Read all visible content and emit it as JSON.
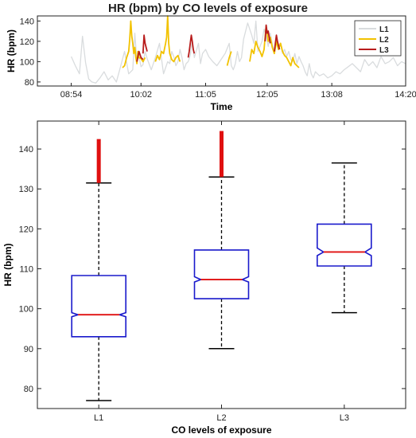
{
  "top_title": "HR (bpm) by CO levels of exposure",
  "chart_data": [
    {
      "type": "line",
      "title": "HR (bpm) by CO levels of exposure",
      "xlabel": "Time",
      "ylabel": "HR (bpm)",
      "x_ticks": [
        "08:54",
        "10:02",
        "11:05",
        "12:05",
        "13:08",
        "14:20"
      ],
      "y_ticks": [
        80,
        90,
        100,
        110,
        120,
        130,
        140
      ],
      "ylim": [
        76,
        145
      ],
      "legend_position": "top-right",
      "legend": [
        {
          "name": "L1",
          "color": "#d9dcde"
        },
        {
          "name": "L2",
          "color": "#f2c200"
        },
        {
          "name": "L3",
          "color": "#b81c1c"
        }
      ],
      "series": [
        {
          "name": "L1",
          "color": "#d9dcde",
          "x": [
            "08:54",
            "08:58",
            "09:02",
            "09:05",
            "09:08",
            "09:11",
            "09:14",
            "09:18",
            "09:22",
            "09:26",
            "09:30",
            "09:34",
            "09:38",
            "09:42",
            "09:46",
            "09:50",
            "09:54",
            "09:56",
            "09:58",
            "10:00",
            "10:02",
            "10:04",
            "10:06",
            "10:08",
            "10:12",
            "10:16",
            "10:20",
            "10:24",
            "10:26",
            "10:28",
            "10:30",
            "10:32",
            "10:34",
            "10:36",
            "10:38",
            "10:40",
            "10:42",
            "10:44",
            "10:46",
            "10:48",
            "10:50",
            "10:52",
            "10:54",
            "10:58",
            "11:00",
            "11:02",
            "11:05",
            "11:08",
            "11:12",
            "11:16",
            "11:20",
            "11:24",
            "11:28",
            "11:30",
            "11:32",
            "11:34",
            "11:36",
            "11:38",
            "11:40",
            "11:42",
            "11:46",
            "11:50",
            "11:52",
            "11:54",
            "11:56",
            "11:58",
            "12:00",
            "12:02",
            "12:04",
            "12:06",
            "12:08",
            "12:10",
            "12:12",
            "12:14",
            "12:16",
            "12:18",
            "12:20",
            "12:22",
            "12:24",
            "12:26",
            "12:28",
            "12:30",
            "12:32",
            "12:34",
            "12:36",
            "12:38",
            "12:40",
            "12:42",
            "12:44",
            "12:46",
            "12:48",
            "12:50",
            "12:52",
            "12:56",
            "13:00",
            "13:04",
            "13:08",
            "13:12",
            "13:16",
            "13:20",
            "13:24",
            "13:28",
            "13:32",
            "13:36",
            "13:40",
            "13:44",
            "13:48",
            "13:52",
            "13:56",
            "14:00",
            "14:04",
            "14:08",
            "14:12",
            "14:16",
            "14:20"
          ],
          "values": [
            105,
            96,
            88,
            125,
            99,
            83,
            80,
            79,
            84,
            90,
            82,
            86,
            80,
            95,
            110,
            88,
            92,
            128,
            100,
            105,
            95,
            97,
            110,
            103,
            92,
            104,
            118,
            88,
            94,
            100,
            98,
            110,
            105,
            96,
            100,
            112,
            104,
            92,
            98,
            100,
            106,
            120,
            104,
            118,
            98,
            108,
            112,
            105,
            100,
            96,
            102,
            108,
            118,
            96,
            92,
            98,
            110,
            100,
            104,
            122,
            138,
            126,
            118,
            140,
            110,
            115,
            120,
            132,
            125,
            115,
            128,
            118,
            110,
            125,
            115,
            118,
            108,
            112,
            105,
            110,
            102,
            100,
            108,
            98,
            105,
            100,
            96,
            90,
            86,
            98,
            88,
            84,
            90,
            86,
            88,
            84,
            86,
            90,
            88,
            92,
            95,
            98,
            94,
            90,
            102,
            96,
            100,
            94,
            105,
            98,
            100,
            104,
            96,
            100,
            98
          ]
        },
        {
          "name": "L2",
          "color": "#f2c200",
          "segments": [
            {
              "x": [
                "09:44",
                "09:46",
                "09:48",
                "09:50",
                "09:51",
                "09:52",
                "09:53",
                "09:54",
                "09:55",
                "09:56",
                "09:57",
                "09:58",
                "09:59",
                "10:00",
                "10:02",
                "10:04",
                "10:06"
              ],
              "values": [
                94,
                96,
                104,
                110,
                122,
                140,
                125,
                118,
                108,
                114,
                104,
                98,
                110,
                104,
                103,
                100,
                104
              ]
            },
            {
              "x": [
                "10:16",
                "10:18",
                "10:20",
                "10:22",
                "10:24",
                "10:26",
                "10:27",
                "10:28",
                "10:29",
                "10:30",
                "10:32",
                "10:34",
                "10:36",
                "10:38",
                "10:40"
              ],
              "values": [
                100,
                106,
                102,
                110,
                108,
                118,
                124,
                145,
                118,
                108,
                102,
                100,
                104,
                106,
                100
              ]
            },
            {
              "x": [
                "11:26",
                "11:28",
                "11:30"
              ],
              "values": [
                96,
                104,
                110
              ]
            },
            {
              "x": [
                "11:48",
                "11:50",
                "11:52",
                "11:54",
                "11:56",
                "11:58",
                "12:00",
                "12:02",
                "12:03",
                "12:04",
                "12:05",
                "12:06",
                "12:08",
                "12:10",
                "12:12",
                "12:14",
                "12:16",
                "12:18",
                "12:20",
                "12:22",
                "12:24",
                "12:26",
                "12:28",
                "12:30",
                "12:32",
                "12:34",
                "12:36"
              ],
              "values": [
                100,
                112,
                108,
                120,
                114,
                110,
                105,
                112,
                124,
                135,
                128,
                120,
                124,
                114,
                108,
                120,
                112,
                118,
                110,
                106,
                104,
                100,
                96,
                104,
                98,
                96,
                94
              ]
            }
          ]
        },
        {
          "name": "L3",
          "color": "#b81c1c",
          "segments": [
            {
              "x": [
                "09:58",
                "10:00",
                "10:02",
                "10:04"
              ],
              "values": [
                100,
                110,
                104,
                102
              ]
            },
            {
              "x": [
                "10:04",
                "10:05",
                "10:06",
                "10:07",
                "10:08"
              ],
              "values": [
                108,
                126,
                118,
                114,
                110
              ]
            },
            {
              "x": [
                "10:48",
                "10:49",
                "10:50",
                "10:51",
                "10:52",
                "10:53",
                "10:54"
              ],
              "values": [
                104,
                110,
                118,
                126,
                120,
                112,
                108
              ]
            },
            {
              "x": [
                "12:03",
                "12:04",
                "12:05",
                "12:06",
                "12:07",
                "12:08"
              ],
              "values": [
                120,
                136,
                128,
                130,
                124,
                118
              ]
            },
            {
              "x": [
                "12:12",
                "12:13",
                "12:14",
                "12:15",
                "12:16",
                "12:17"
              ],
              "values": [
                110,
                118,
                126,
                120,
                116,
                112
              ]
            }
          ]
        }
      ]
    },
    {
      "type": "box",
      "xlabel": "CO levels of exposure",
      "ylabel": "HR (bpm)",
      "categories": [
        "L1",
        "L2",
        "L3"
      ],
      "y_ticks": [
        80,
        90,
        100,
        110,
        120,
        130,
        140
      ],
      "ylim": [
        75,
        147
      ],
      "notched": true,
      "box_color": "#1a1acc",
      "median_color": "#e01010",
      "outlier_color": "#e01010",
      "boxes": [
        {
          "name": "L1",
          "whisker_low": 77,
          "q1": 93,
          "median": 98.5,
          "q3": 108.3,
          "whisker_high": 131.5,
          "notch_low": 98,
          "notch_high": 99,
          "outliers_low": 131.5,
          "outliers_high": 142.5
        },
        {
          "name": "L2",
          "whisker_low": 90,
          "q1": 102.5,
          "median": 107.3,
          "q3": 114.7,
          "whisker_high": 133,
          "notch_low": 106.7,
          "notch_high": 108,
          "outliers_low": 133,
          "outliers_high": 144.5
        },
        {
          "name": "L3",
          "whisker_low": 99,
          "q1": 110.7,
          "median": 114.2,
          "q3": 121.2,
          "whisker_high": 136.5,
          "notch_low": 113.3,
          "notch_high": 115.2
        }
      ]
    }
  ]
}
